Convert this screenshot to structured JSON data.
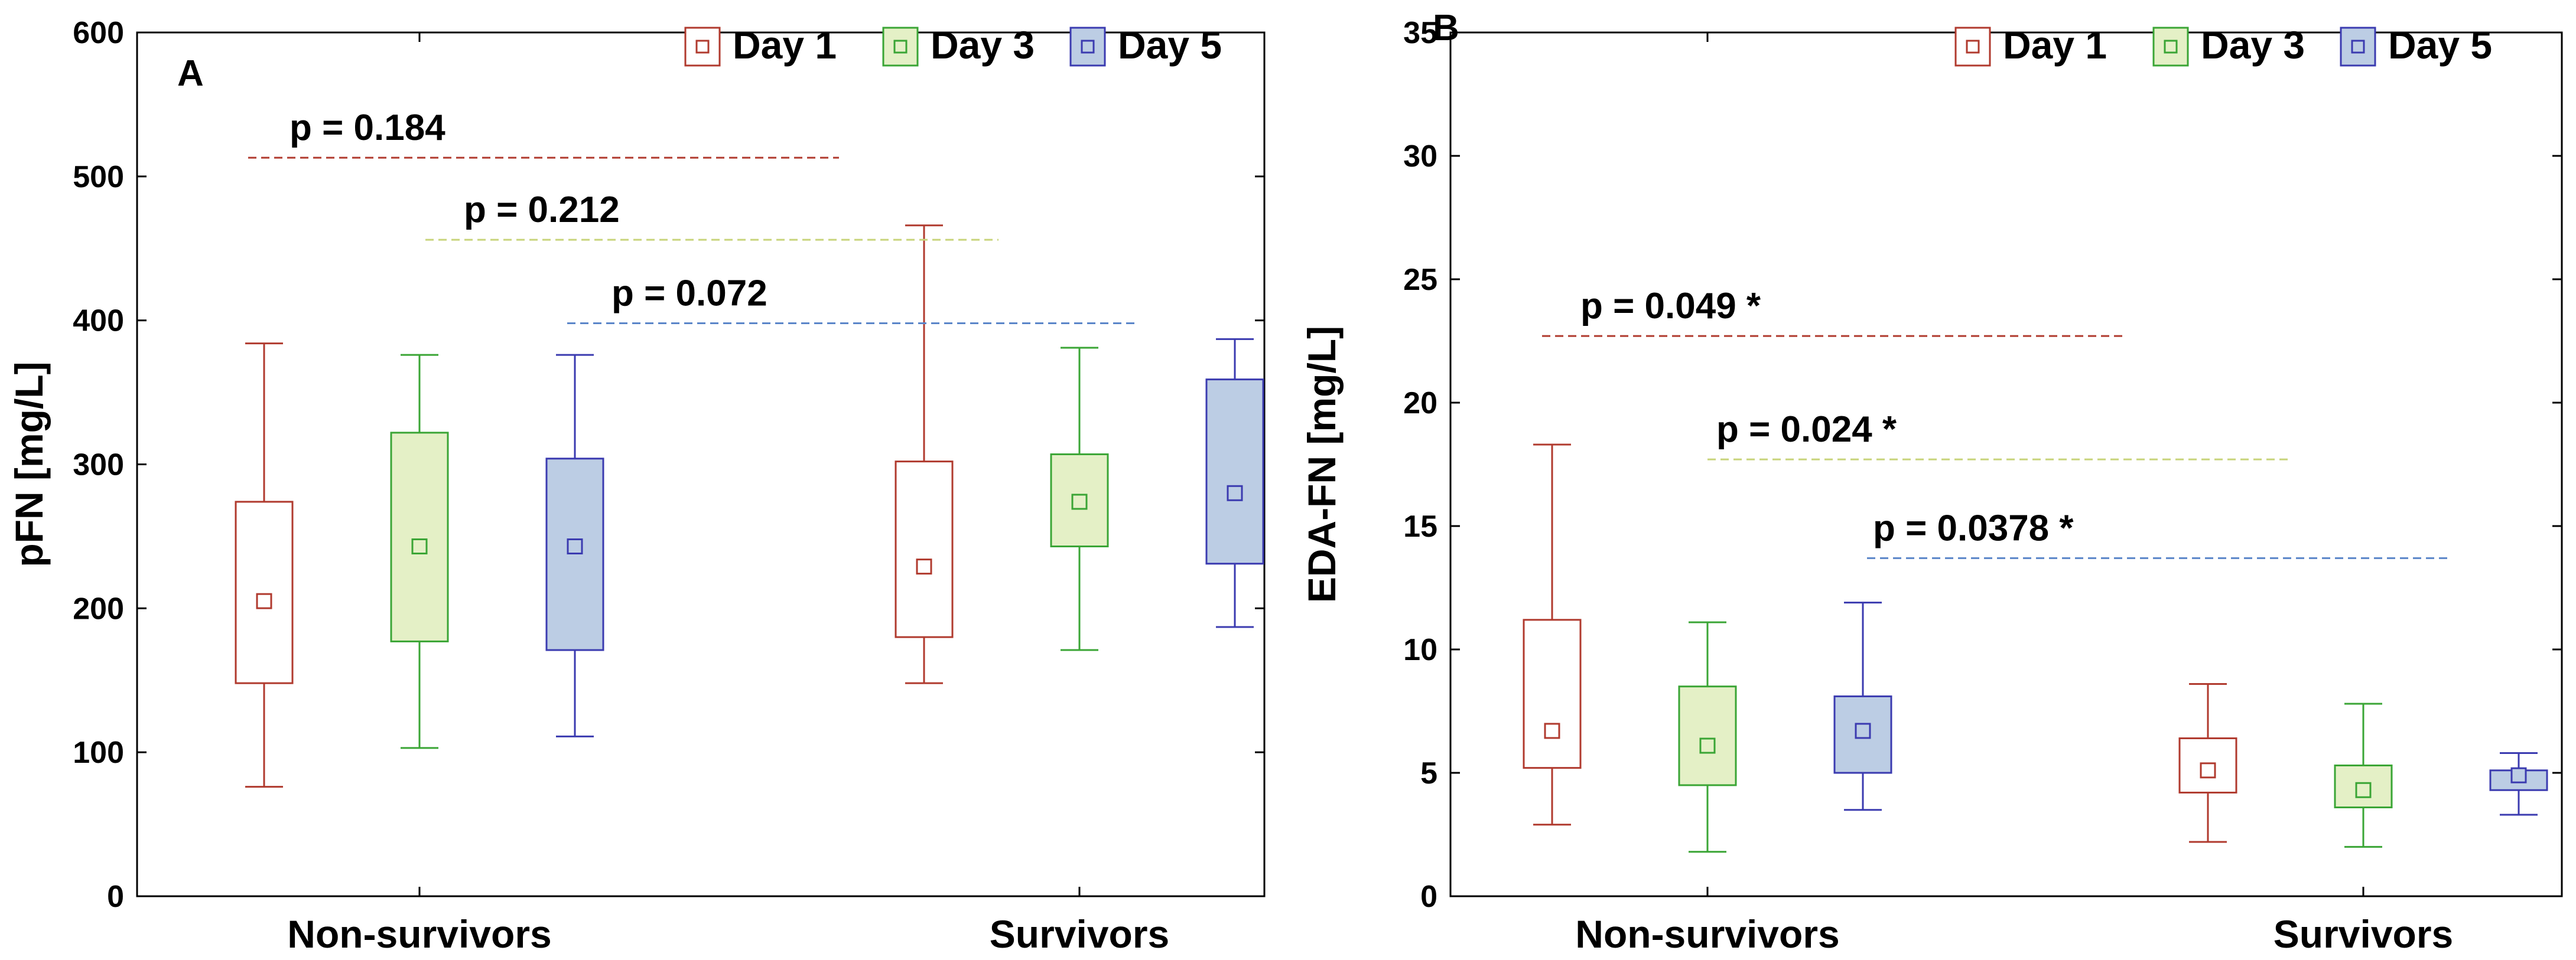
{
  "chart_data": [
    {
      "type": "box",
      "panel_label": "A",
      "ylabel": "pFN [mg/L]",
      "xlabel": "",
      "ylim": [
        0,
        600
      ],
      "yticks": [
        "0",
        "100",
        "200",
        "300",
        "400",
        "500",
        "600"
      ],
      "categories": [
        "Non-survivors",
        "Survivors"
      ],
      "legend": [
        "Day 1",
        "Day 3",
        "Day 5"
      ],
      "series": [
        {
          "name": "Day 1",
          "color": "#b03a2e",
          "fill": "#ffffff",
          "boxes": [
            {
              "whisker_low": 76,
              "q1": 148,
              "mean": 205,
              "q3": 274,
              "whisker_high": 384
            },
            {
              "whisker_low": 148,
              "q1": 180,
              "mean": 229,
              "q3": 302,
              "whisker_high": 466
            }
          ]
        },
        {
          "name": "Day 3",
          "color": "#3aa535",
          "fill": "#e4f0c6",
          "boxes": [
            {
              "whisker_low": 103,
              "q1": 177,
              "mean": 243,
              "q3": 322,
              "whisker_high": 376
            },
            {
              "whisker_low": 171,
              "q1": 243,
              "mean": 274,
              "q3": 307,
              "whisker_high": 381
            }
          ]
        },
        {
          "name": "Day 5",
          "color": "#3b3bb0",
          "fill": "#bccde4",
          "boxes": [
            {
              "whisker_low": 111,
              "q1": 171,
              "mean": 243,
              "q3": 304,
              "whisker_high": 376
            },
            {
              "whisker_low": 187,
              "q1": 231,
              "mean": 280,
              "q3": 359,
              "whisker_high": 387
            }
          ]
        }
      ],
      "annotations": [
        {
          "text": "p = 0.184",
          "y": 513,
          "color": "#b03a2e"
        },
        {
          "text": "p = 0.212",
          "y": 456,
          "color": "#c8d47a"
        },
        {
          "text": "p = 0.072",
          "y": 398,
          "color": "#5b86c9"
        }
      ]
    },
    {
      "type": "box",
      "panel_label": "B",
      "ylabel": "EDA-FN [mg/L]",
      "xlabel": "",
      "ylim": [
        0,
        35
      ],
      "yticks": [
        "0",
        "5",
        "10",
        "15",
        "20",
        "25",
        "30",
        "35"
      ],
      "categories": [
        "Non-survivors",
        "Survivors"
      ],
      "legend": [
        "Day 1",
        "Day 3",
        "Day 5"
      ],
      "series": [
        {
          "name": "Day 1",
          "color": "#b03a2e",
          "fill": "#ffffff",
          "boxes": [
            {
              "whisker_low": 2.9,
              "q1": 5.2,
              "mean": 6.7,
              "q3": 11.2,
              "whisker_high": 18.3
            },
            {
              "whisker_low": 2.2,
              "q1": 4.2,
              "mean": 5.1,
              "q3": 6.4,
              "whisker_high": 8.6
            }
          ]
        },
        {
          "name": "Day 3",
          "color": "#3aa535",
          "fill": "#e4f0c6",
          "boxes": [
            {
              "whisker_low": 1.8,
              "q1": 4.5,
              "mean": 6.1,
              "q3": 8.5,
              "whisker_high": 11.1
            },
            {
              "whisker_low": 2.0,
              "q1": 3.6,
              "mean": 4.3,
              "q3": 5.3,
              "whisker_high": 7.8
            }
          ]
        },
        {
          "name": "Day 5",
          "color": "#3b3bb0",
          "fill": "#bccde4",
          "boxes": [
            {
              "whisker_low": 3.5,
              "q1": 5.0,
              "mean": 6.7,
              "q3": 8.1,
              "whisker_high": 11.9
            },
            {
              "whisker_low": 3.3,
              "q1": 4.3,
              "mean": 4.9,
              "q3": 5.1,
              "whisker_high": 5.8
            }
          ]
        }
      ],
      "annotations": [
        {
          "text": "p = 0.049 *",
          "y": 22.7,
          "color": "#b03a2e"
        },
        {
          "text": "p = 0.024 *",
          "y": 17.7,
          "color": "#c8d47a"
        },
        {
          "text": "p = 0.0378 *",
          "y": 13.7,
          "color": "#5b86c9"
        }
      ]
    }
  ]
}
